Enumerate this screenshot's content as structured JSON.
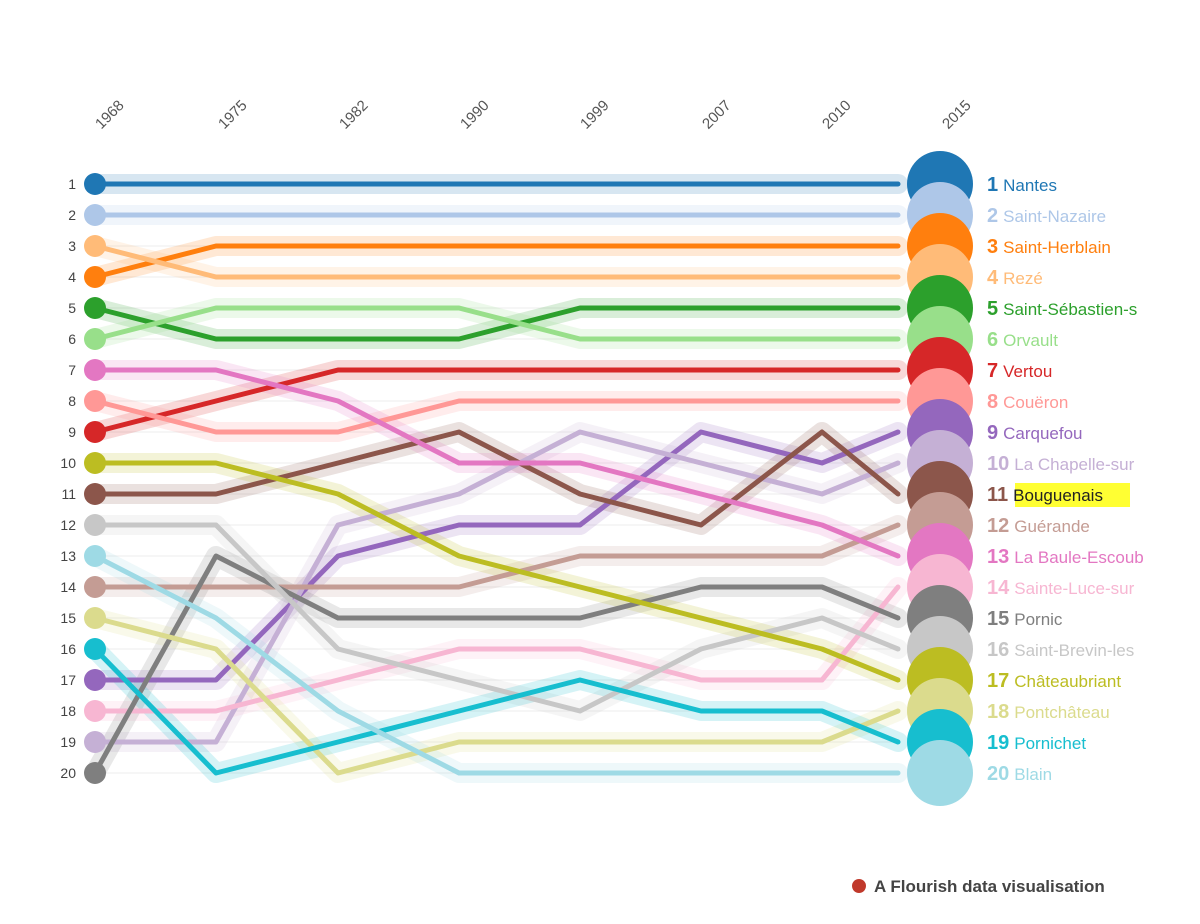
{
  "chart_data": {
    "type": "line",
    "title": "",
    "xlabel": "",
    "ylabel": "",
    "x": [
      "1968",
      "1975",
      "1982",
      "1990",
      "1999",
      "2007",
      "2010",
      "2015"
    ],
    "y_ticks": [
      "1",
      "2",
      "3",
      "4",
      "5",
      "6",
      "7",
      "8",
      "9",
      "10",
      "11",
      "12",
      "13",
      "14",
      "15",
      "16",
      "17",
      "18",
      "19",
      "20"
    ],
    "y_inverted": true,
    "ylim": [
      1,
      20
    ],
    "legend": "right-end-labels",
    "highlighted": "Bouguenais",
    "series": [
      {
        "name": "Nantes",
        "color": "#1f77b4",
        "values": [
          1,
          1,
          1,
          1,
          1,
          1,
          1,
          1
        ]
      },
      {
        "name": "Saint-Nazaire",
        "color": "#aec7e8",
        "values": [
          2,
          2,
          2,
          2,
          2,
          2,
          2,
          2
        ]
      },
      {
        "name": "Saint-Herblain",
        "color": "#ff7f0e",
        "values": [
          4,
          3,
          3,
          3,
          3,
          3,
          3,
          3
        ]
      },
      {
        "name": "Rezé",
        "color": "#ffbb78",
        "values": [
          3,
          4,
          4,
          4,
          4,
          4,
          4,
          4
        ]
      },
      {
        "name": "Saint-Sébastien-s",
        "color": "#2ca02c",
        "values": [
          5,
          6,
          6,
          6,
          5,
          5,
          5,
          5
        ]
      },
      {
        "name": "Orvault",
        "color": "#98df8a",
        "values": [
          6,
          5,
          5,
          5,
          6,
          6,
          6,
          6
        ]
      },
      {
        "name": "Vertou",
        "color": "#d62728",
        "values": [
          9,
          8,
          7,
          7,
          7,
          7,
          7,
          7
        ]
      },
      {
        "name": "Couëron",
        "color": "#ff9896",
        "values": [
          8,
          9,
          9,
          8,
          8,
          8,
          8,
          8
        ]
      },
      {
        "name": "Carquefou",
        "color": "#9467bd",
        "values": [
          17,
          17,
          13,
          12,
          12,
          9,
          10,
          9
        ]
      },
      {
        "name": "La Chapelle-sur",
        "color": "#c5b0d5",
        "values": [
          19,
          19,
          12,
          11,
          9,
          10,
          11,
          10
        ]
      },
      {
        "name": "Bouguenais",
        "color": "#8c564b",
        "values": [
          11,
          11,
          10,
          9,
          11,
          12,
          9,
          11
        ]
      },
      {
        "name": "Guérande",
        "color": "#c49c94",
        "values": [
          14,
          14,
          14,
          14,
          13,
          13,
          13,
          12
        ]
      },
      {
        "name": "La Baule-Escoub",
        "color": "#e377c2",
        "values": [
          7,
          7,
          8,
          10,
          10,
          11,
          12,
          13
        ]
      },
      {
        "name": "Sainte-Luce-sur",
        "color": "#f7b6d2",
        "values": [
          18,
          18,
          17,
          16,
          16,
          17,
          17,
          14
        ]
      },
      {
        "name": "Pornic",
        "color": "#7f7f7f",
        "values": [
          20,
          13,
          15,
          15,
          15,
          14,
          14,
          15
        ]
      },
      {
        "name": "Saint-Brevin-les",
        "color": "#c7c7c7",
        "values": [
          12,
          12,
          16,
          17,
          18,
          16,
          15,
          16
        ]
      },
      {
        "name": "Châteaubriant",
        "color": "#bcbd22",
        "values": [
          10,
          10,
          11,
          13,
          14,
          15,
          16,
          17
        ]
      },
      {
        "name": "Pontchâteau",
        "color": "#dbdb8d",
        "values": [
          15,
          16,
          20,
          19,
          19,
          19,
          19,
          18
        ]
      },
      {
        "name": "Pornichet",
        "color": "#17becf",
        "values": [
          16,
          20,
          19,
          18,
          17,
          18,
          18,
          19
        ]
      },
      {
        "name": "Blain",
        "color": "#9edae5",
        "values": [
          13,
          15,
          18,
          20,
          20,
          20,
          20,
          20
        ]
      }
    ]
  },
  "credit": {
    "text": "A Flourish data visualisation",
    "dot_color": "#c0392b"
  }
}
